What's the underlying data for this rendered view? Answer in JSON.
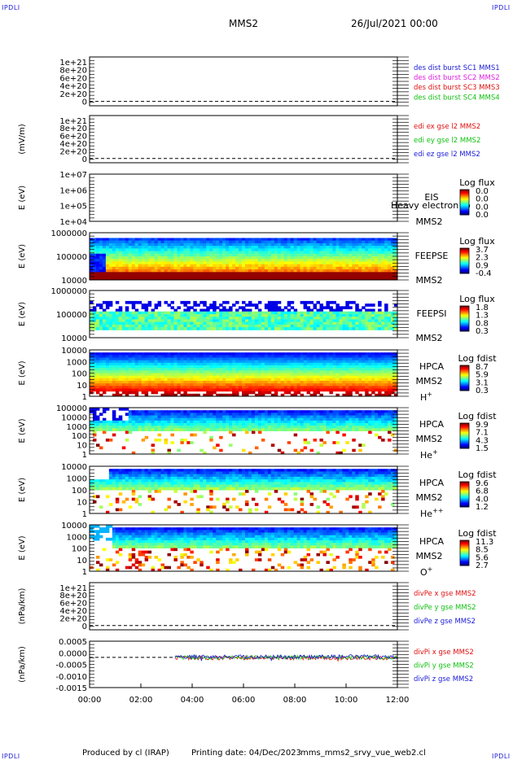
{
  "corner_tag": "IPDLI",
  "header": {
    "spacecraft": "MMS2",
    "date": "26/Jul/2021 00:00"
  },
  "footer": {
    "produced_by": "Produced by cl (IRAP)",
    "printing_date": "Printing date: 04/Dec/2023",
    "file": "mms_mms2_srvy_vue_web2.cl"
  },
  "x_axis": {
    "ticks": [
      "00:00",
      "02:00",
      "04:00",
      "06:00",
      "08:00",
      "10:00",
      "12:00"
    ]
  },
  "colors": {
    "blue": "#1a1ad8",
    "magenta": "#e020e0",
    "red": "#e01010",
    "green": "#10c010"
  },
  "chart_data": [
    {
      "type": "line",
      "panel": "dist-burst",
      "ylabel": "",
      "yticks": [
        "1e+21",
        "8e+20",
        "6e+20",
        "4e+20",
        "2e+20",
        "0"
      ],
      "legend": [
        {
          "name": "des dist burst SC1 MMS1",
          "color": "#1a1ad8"
        },
        {
          "name": "des dist burst SC2 MMS2",
          "color": "#e020e0"
        },
        {
          "name": "des dist burst SC3 MMS3",
          "color": "#e01010"
        },
        {
          "name": "des dist burst SC4 MMS4",
          "color": "#10c010"
        }
      ],
      "series": [],
      "zero_line": true
    },
    {
      "type": "line",
      "panel": "edi-e",
      "ylabel": "(mV/m)",
      "yticks": [
        "1e+21",
        "8e+20",
        "6e+20",
        "4e+20",
        "2e+20",
        "0"
      ],
      "legend": [
        {
          "name": "edi ex gse l2 MMS2",
          "color": "#e01010"
        },
        {
          "name": "edi ey gse l2 MMS2",
          "color": "#10c010"
        },
        {
          "name": "edi ez gse l2 MMS2",
          "color": "#1a1ad8"
        }
      ],
      "series": [],
      "zero_line": true
    },
    {
      "type": "heatmap",
      "panel": "eis",
      "ylabel": "E (eV)",
      "yticks": [
        "1e+07",
        "1e+06",
        "1e+05",
        "1e+04"
      ],
      "instrument": "EIS",
      "spacecraft": "MMS2",
      "overlay_text": "Heavy electron to",
      "cbar_title": "Log flux",
      "cbar_ticks": [
        "0.0",
        "0.0",
        "0.0",
        "0.0"
      ],
      "fill": "none"
    },
    {
      "type": "heatmap",
      "panel": "feepse",
      "ylabel": "E (eV)",
      "yticks": [
        "1000000",
        "100000",
        "10000"
      ],
      "instrument": "FEEPSE",
      "spacecraft": "MMS2",
      "cbar_title": "Log flux",
      "cbar_ticks": [
        "3.7",
        "2.3",
        "0.9",
        "-0.4"
      ],
      "fill": "feeps-e"
    },
    {
      "type": "heatmap",
      "panel": "feepsi",
      "ylabel": "E (eV)",
      "yticks": [
        "1000000",
        "100000",
        "10000"
      ],
      "instrument": "FEEPSI",
      "spacecraft": "MMS2",
      "cbar_title": "Log flux",
      "cbar_ticks": [
        "1.8",
        "1.3",
        "0.8",
        "0.3"
      ],
      "fill": "feeps-i"
    },
    {
      "type": "heatmap",
      "panel": "hpca-h",
      "ylabel": "E (eV)",
      "yticks": [
        "10000",
        "1000",
        "100",
        "10",
        "1"
      ],
      "instrument": "HPCA",
      "spacecraft": "MMS2",
      "species": "H",
      "charge": "+",
      "cbar_title": "Log fdist",
      "cbar_ticks": [
        "8.7",
        "5.9",
        "3.1",
        "0.3"
      ],
      "fill": "hpca-h"
    },
    {
      "type": "heatmap",
      "panel": "hpca-he",
      "ylabel": "E (eV)",
      "yticks": [
        "100000",
        "10000",
        "1000",
        "100",
        "10",
        "1"
      ],
      "instrument": "HPCA",
      "spacecraft": "MMS2",
      "species": "He",
      "charge": "+",
      "cbar_title": "Log fdist",
      "cbar_ticks": [
        "9.9",
        "7.1",
        "4.3",
        "1.5"
      ],
      "fill": "hpca-he"
    },
    {
      "type": "heatmap",
      "panel": "hpca-he2",
      "ylabel": "E (eV)",
      "yticks": [
        "10000",
        "1000",
        "100",
        "10",
        "1"
      ],
      "instrument": "HPCA",
      "spacecraft": "MMS2",
      "species": "He",
      "charge": "++",
      "cbar_title": "Log fdist",
      "cbar_ticks": [
        "9.6",
        "6.8",
        "4.0",
        "1.2"
      ],
      "fill": "hpca-he2"
    },
    {
      "type": "heatmap",
      "panel": "hpca-o",
      "ylabel": "E (eV)",
      "yticks": [
        "10000",
        "1000",
        "100",
        "10",
        "1"
      ],
      "instrument": "HPCA",
      "spacecraft": "MMS2",
      "species": "O",
      "charge": "+",
      "cbar_title": "Log fdist",
      "cbar_ticks": [
        "11.3",
        "8.5",
        "5.6",
        "2.7"
      ],
      "fill": "hpca-o"
    },
    {
      "type": "line",
      "panel": "divpe",
      "ylabel": "(nPa/km)",
      "yticks": [
        "1e+21",
        "8e+20",
        "6e+20",
        "4e+20",
        "2e+20",
        "0"
      ],
      "legend": [
        {
          "name": "divPe x gse MMS2",
          "color": "#e01010"
        },
        {
          "name": "divPe y gse MMS2",
          "color": "#10c010"
        },
        {
          "name": "divPe z gse MMS2",
          "color": "#1a1ad8"
        }
      ],
      "series": [],
      "zero_line": true
    },
    {
      "type": "line",
      "panel": "divpi",
      "ylabel": "(nPa/km)",
      "yticks": [
        "0.0005",
        "0.0000",
        "-0.0005",
        "-0.0010",
        "-0.0015"
      ],
      "ylim": [
        -0.0015,
        0.0008
      ],
      "legend": [
        {
          "name": "divPi x gse MMS2",
          "color": "#e01010"
        },
        {
          "name": "divPi y gse MMS2",
          "color": "#10c010"
        },
        {
          "name": "divPi z gse MMS2",
          "color": "#1a1ad8"
        }
      ],
      "data_start": "03:20",
      "zero_line": true
    }
  ]
}
